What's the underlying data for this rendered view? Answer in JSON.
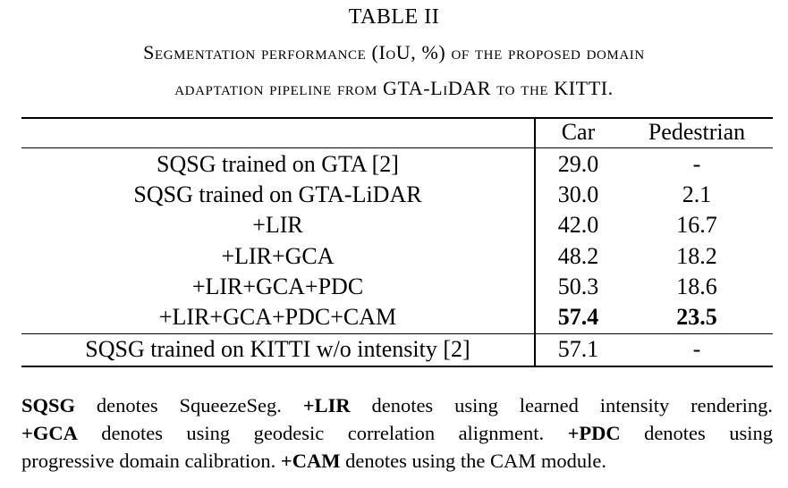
{
  "table": {
    "title": "TABLE II",
    "caption_line1": "Segmentation performance (IoU, %) of the proposed domain",
    "caption_line2": "adaptation pipeline from GTA-LiDAR to the KITTI.",
    "headers": {
      "method": "",
      "car": "Car",
      "pedestrian": "Pedestrian"
    },
    "rows": [
      {
        "method": "SQSG trained on GTA [2]",
        "car": "29.0",
        "pedestrian": "-",
        "bold": false
      },
      {
        "method": "SQSG trained on GTA-LiDAR",
        "car": "30.0",
        "pedestrian": "2.1",
        "bold": false
      },
      {
        "method": "+LIR",
        "car": "42.0",
        "pedestrian": "16.7",
        "bold": false
      },
      {
        "method": "+LIR+GCA",
        "car": "48.2",
        "pedestrian": "18.2",
        "bold": false
      },
      {
        "method": "+LIR+GCA+PDC",
        "car": "50.3",
        "pedestrian": "18.6",
        "bold": false
      },
      {
        "method": "+LIR+GCA+PDC+CAM",
        "car": "57.4",
        "pedestrian": "23.5",
        "bold": true
      }
    ],
    "reference_row": {
      "method": "SQSG trained on KITTI w/o intensity [2]",
      "car": "57.1",
      "pedestrian": "-"
    }
  },
  "footnote": {
    "sqsg_term": "SQSG",
    "sqsg_text": " denotes SqueezeSeg. ",
    "lir_term": "+LIR",
    "lir_text": " denotes using learned intensity rendering.",
    "gca_term": "+GCA",
    "gca_text": " denotes using geodesic correlation alignment. ",
    "pdc_term": "+PDC",
    "pdc_text": " denotes using",
    "pdc_text2": "progressive domain calibration. ",
    "cam_term": "+CAM",
    "cam_text": " denotes using the CAM module."
  }
}
